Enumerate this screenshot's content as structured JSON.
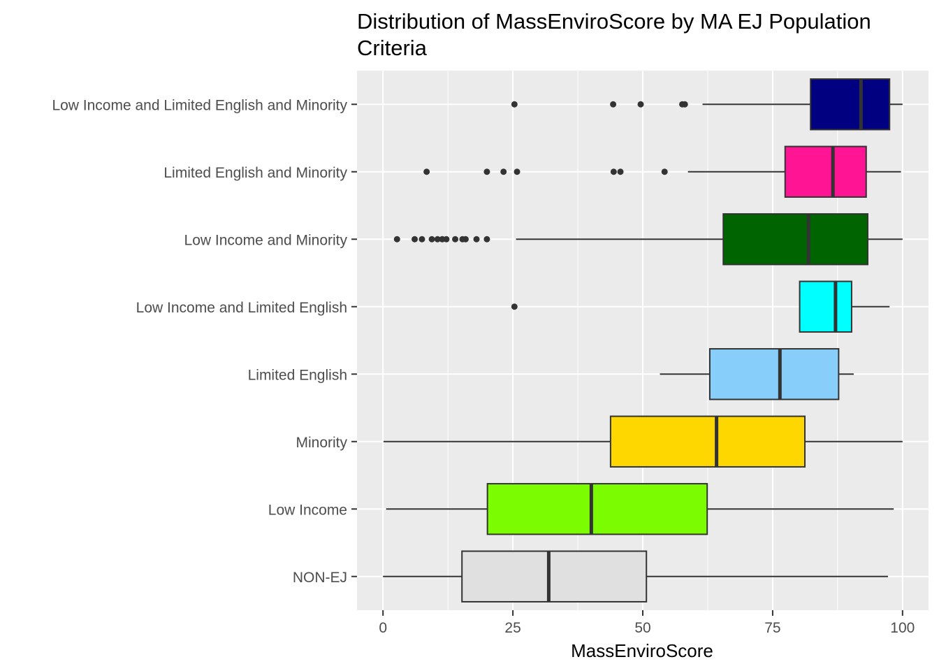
{
  "chart_data": {
    "type": "boxplot",
    "orientation": "horizontal",
    "title": "Distribution of MassEnviroScore by MA EJ Population Criteria",
    "xlabel": "MassEnviroScore",
    "ylabel": "",
    "xlim": [
      -5,
      105
    ],
    "x_ticks": [
      0,
      25,
      50,
      75,
      100
    ],
    "x_tick_labels": [
      "0",
      "25",
      "50",
      "75",
      "100"
    ],
    "grid": true,
    "legend": "none",
    "colors": {
      "panel_background": "#EBEBEB",
      "grid": "#FFFFFF",
      "outline": "#333333",
      "outlier": "#333333"
    },
    "categories": [
      "Low Income and Limited English and Minority",
      "Limited English and Minority",
      "Low Income and Minority",
      "Low Income and Limited English",
      "Limited English",
      "Minority",
      "Low Income",
      "NON-EJ"
    ],
    "series": [
      {
        "category": "Low Income and Limited English and Minority",
        "whisker_low": 61.5,
        "q1": 82.3,
        "median": 92.0,
        "q3": 97.5,
        "whisker_high": 100,
        "outliers": [
          25.3,
          44.3,
          49.6,
          57.6,
          58.1
        ],
        "color": "#000080"
      },
      {
        "category": "Limited English and Minority",
        "whisker_low": 58.7,
        "q1": 77.4,
        "median": 86.6,
        "q3": 93.0,
        "whisker_high": 99.7,
        "outliers": [
          8.4,
          20.0,
          23.2,
          25.8,
          44.4,
          45.7,
          54.2
        ],
        "color": "#FF1493"
      },
      {
        "category": "Low Income and Minority",
        "whisker_low": 25.6,
        "q1": 65.5,
        "median": 81.9,
        "q3": 93.3,
        "whisker_high": 100,
        "outliers": [
          2.7,
          6.1,
          7.5,
          9.4,
          10.5,
          11.4,
          12.2,
          13.9,
          15.3,
          15.9,
          18.0,
          20.0
        ],
        "color": "#006400"
      },
      {
        "category": "Low Income and Limited English",
        "whisker_low": 80.2,
        "q1": 80.2,
        "median": 87.1,
        "q3": 90.2,
        "whisker_high": 97.5,
        "outliers": [
          25.3
        ],
        "color": "#00FFFF"
      },
      {
        "category": "Limited English",
        "whisker_low": 53.3,
        "q1": 62.9,
        "median": 76.4,
        "q3": 87.7,
        "whisker_high": 90.6,
        "outliers": [],
        "color": "#87CEFA"
      },
      {
        "category": "Minority",
        "whisker_low": 0.1,
        "q1": 43.8,
        "median": 64.2,
        "q3": 81.2,
        "whisker_high": 100,
        "outliers": [],
        "color": "#FFD700"
      },
      {
        "category": "Low Income",
        "whisker_low": 0.6,
        "q1": 20.1,
        "median": 40.1,
        "q3": 62.4,
        "whisker_high": 98.3,
        "outliers": [],
        "color": "#7CFC00"
      },
      {
        "category": "NON-EJ",
        "whisker_low": 0.0,
        "q1": 15.2,
        "median": 31.9,
        "q3": 50.7,
        "whisker_high": 97.2,
        "outliers": [],
        "color": "#E0E0E0"
      }
    ]
  }
}
